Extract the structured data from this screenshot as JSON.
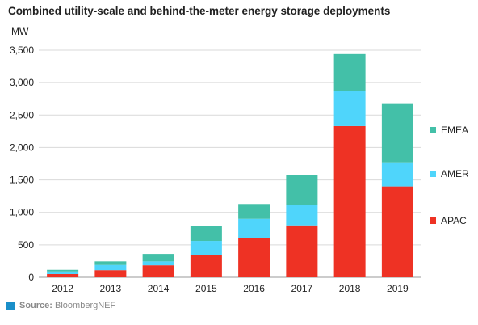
{
  "chart_data": {
    "type": "bar",
    "stacked": true,
    "title": "Combined utility-scale and behind-the-meter energy storage deployments",
    "ylabel": "MW",
    "xlabel": "",
    "ylim": [
      0,
      3500
    ],
    "yticks": [
      0,
      500,
      1000,
      1500,
      2000,
      2500,
      3000,
      3500
    ],
    "ytick_labels": [
      "0",
      "500",
      "1,000",
      "1,500",
      "2,000",
      "2,500",
      "3,000",
      "3,500"
    ],
    "grid": "horizontal",
    "legend_position": "right",
    "categories": [
      "2012",
      "2013",
      "2014",
      "2015",
      "2016",
      "2017",
      "2018",
      "2019"
    ],
    "series": [
      {
        "name": "APAC",
        "color": "#ee3224",
        "values": [
          50,
          110,
          185,
          345,
          605,
          800,
          2330,
          1400
        ]
      },
      {
        "name": "AMER",
        "color": "#4fd5fb",
        "values": [
          40,
          80,
          60,
          215,
          295,
          320,
          540,
          360
        ]
      },
      {
        "name": "EMEA",
        "color": "#43c0a8",
        "values": [
          25,
          55,
          115,
          225,
          230,
          450,
          570,
          910
        ]
      }
    ]
  },
  "source": {
    "label": "Source:",
    "text": "BloombergNEF",
    "icon": "square-icon",
    "color": "#1a8fc9"
  }
}
